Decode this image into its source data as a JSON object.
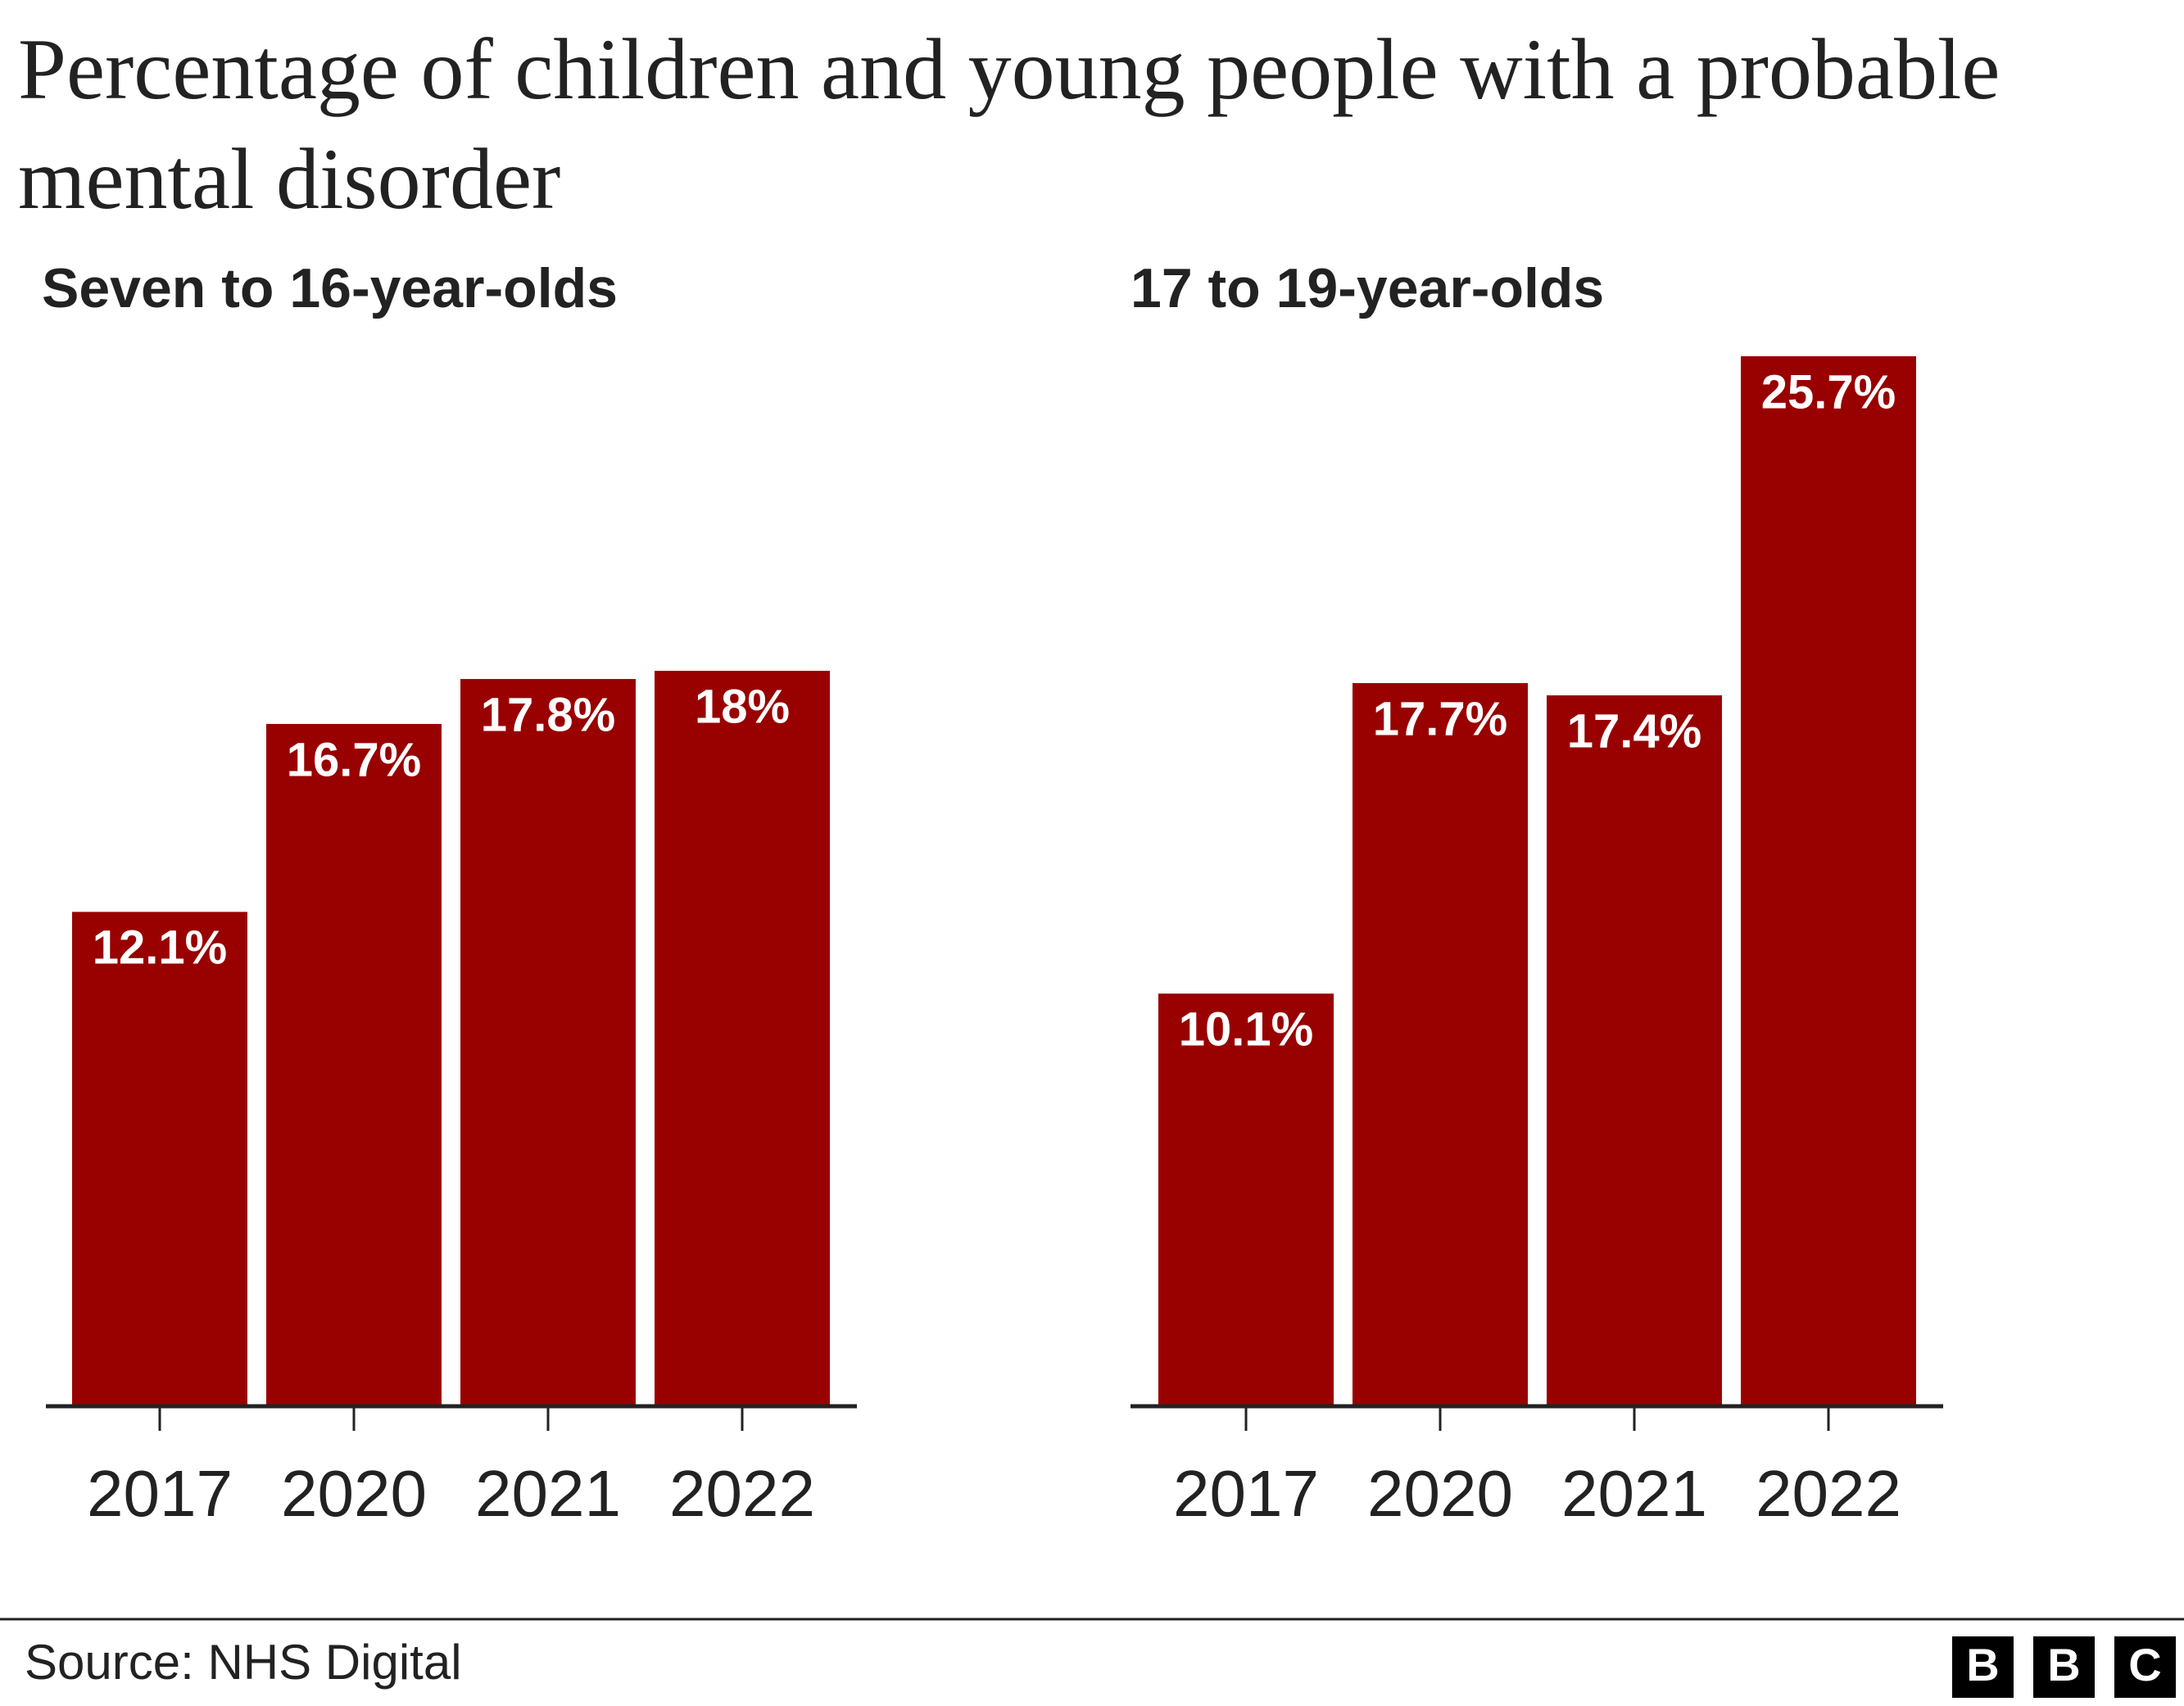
{
  "title": "Percentage of children and young people with a probable mental disorder",
  "chart_data": [
    {
      "type": "bar",
      "subtitle": "Seven to 16-year-olds",
      "categories": [
        "2017",
        "2020",
        "2021",
        "2022"
      ],
      "values": [
        12.1,
        16.7,
        17.8,
        18
      ],
      "value_labels": [
        "12.1%",
        "16.7%",
        "17.8%",
        "18%"
      ],
      "color": "#990000",
      "ylim": [
        0,
        26
      ]
    },
    {
      "type": "bar",
      "subtitle": "17 to 19-year-olds",
      "categories": [
        "2017",
        "2020",
        "2021",
        "2022"
      ],
      "values": [
        10.1,
        17.7,
        17.4,
        25.7
      ],
      "value_labels": [
        "10.1%",
        "17.7%",
        "17.4%",
        "25.7%"
      ],
      "color": "#990000",
      "ylim": [
        0,
        26
      ]
    }
  ],
  "source": "Source: NHS Digital",
  "brand": [
    "B",
    "B",
    "C"
  ]
}
